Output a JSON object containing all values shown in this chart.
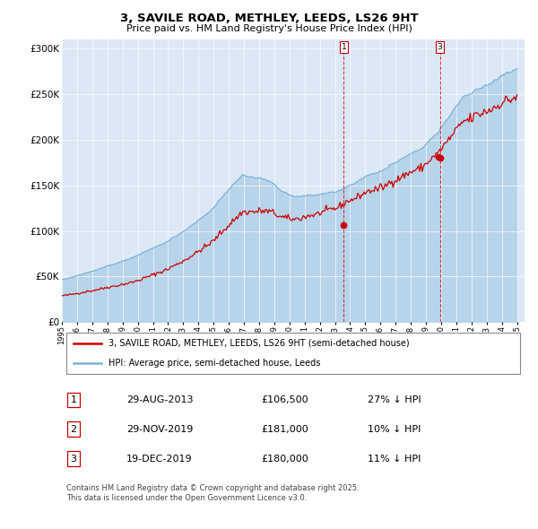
{
  "title_line1": "3, SAVILE ROAD, METHLEY, LEEDS, LS26 9HT",
  "title_line2": "Price paid vs. HM Land Registry's House Price Index (HPI)",
  "plot_bg_color": "#dce8f5",
  "hpi_color": "#7ab3d9",
  "hpi_fill_color": "#b8d4eb",
  "price_color": "#cc0000",
  "ylim": [
    0,
    310000
  ],
  "yticks": [
    0,
    50000,
    100000,
    150000,
    200000,
    250000,
    300000
  ],
  "ytick_labels": [
    "£0",
    "£50K",
    "£100K",
    "£150K",
    "£200K",
    "£250K",
    "£300K"
  ],
  "sale_prices": [
    106500,
    181000,
    180000
  ],
  "annotation_labels": [
    "1",
    "3"
  ],
  "table_rows": [
    [
      "1",
      "29-AUG-2013",
      "£106,500",
      "27% ↓ HPI"
    ],
    [
      "2",
      "29-NOV-2019",
      "£181,000",
      "10% ↓ HPI"
    ],
    [
      "3",
      "19-DEC-2019",
      "£180,000",
      "11% ↓ HPI"
    ]
  ],
  "legend_entries": [
    "3, SAVILE ROAD, METHLEY, LEEDS, LS26 9HT (semi-detached house)",
    "HPI: Average price, semi-detached house, Leeds"
  ],
  "footnote": "Contains HM Land Registry data © Crown copyright and database right 2025.\nThis data is licensed under the Open Government Licence v3.0."
}
